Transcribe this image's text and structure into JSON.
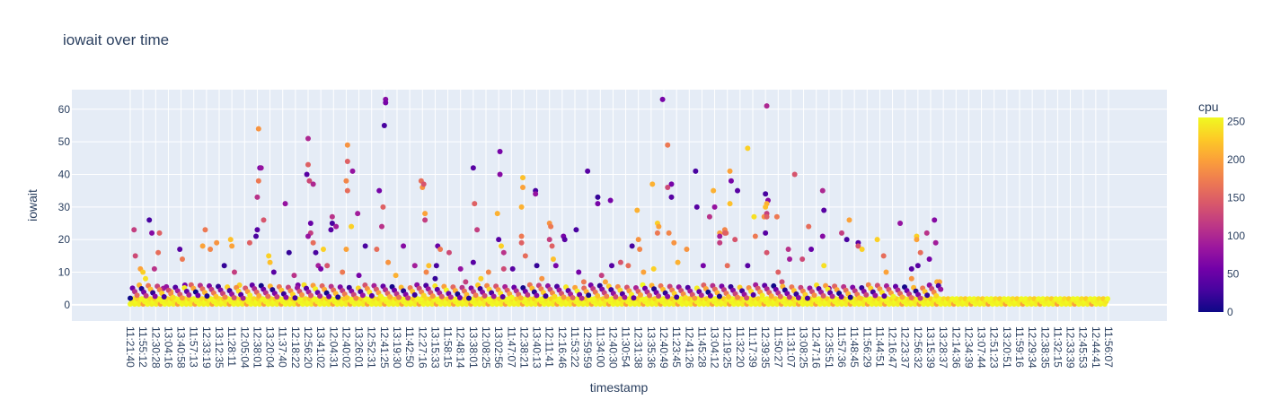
{
  "chart_data": {
    "type": "scatter",
    "title": "iowait over time",
    "xlabel": "timestamp",
    "ylabel": "iowait",
    "ylim": [
      -5,
      66
    ],
    "y_ticks": [
      0,
      10,
      20,
      30,
      40,
      50,
      60
    ],
    "x_ticks": [
      "11:21:40",
      "11:55:12",
      "12:30:28",
      "13:04:16",
      "13:40:58",
      "11:57:13",
      "12:33:19",
      "13:12:35",
      "11:28:11",
      "12:05:04",
      "12:38:01",
      "13:20:04",
      "11:37:40",
      "12:18:22",
      "12:56:20",
      "13:41:02",
      "12:04:31",
      "12:40:02",
      "13:26:01",
      "12:52:31",
      "12:41:25",
      "13:19:30",
      "11:42:50",
      "12:27:16",
      "13:15:33",
      "11:58:15",
      "12:48:14",
      "13:38:01",
      "12:08:25",
      "13:02:56",
      "11:47:07",
      "12:38:21",
      "13:40:13",
      "12:11:41",
      "12:16:46",
      "11:53:22",
      "12:59:59",
      "11:34:00",
      "12:40:30",
      "11:30:54",
      "12:31:38",
      "13:35:36",
      "12:40:49",
      "11:23:45",
      "12:41:26",
      "11:45:28",
      "13:04:12",
      "12:19:25",
      "11:32:20",
      "11:17:39",
      "12:39:35",
      "11:50:27",
      "11:31:07",
      "13:08:25",
      "12:47:16",
      "12:35:51",
      "11:57:36",
      "11:48:45",
      "11:56:29",
      "11:44:51",
      "12:16:47",
      "12:23:37",
      "12:56:32",
      "13:15:39",
      "13:28:37",
      "12:14:36",
      "12:34:39",
      "13:07:44",
      "12:51:23",
      "13:20:51",
      "11:59:16",
      "12:29:34",
      "12:38:35",
      "11:32:15",
      "12:33:39",
      "12:45:53",
      "12:44:41",
      "11:56:07"
    ],
    "colorbar": {
      "title": "cpu",
      "ticks": [
        0,
        50,
        100,
        150,
        200,
        250
      ],
      "range": [
        0,
        255
      ]
    },
    "colorscale": [
      "#0d0887",
      "#46039f",
      "#7201a8",
      "#9c179e",
      "#bd3786",
      "#d8576b",
      "#ed7953",
      "#fb9f3a",
      "#fdca26",
      "#f0f921"
    ],
    "grid": true,
    "legend": "right",
    "points": [
      {
        "x": 0.3,
        "y": 23,
        "c": 120
      },
      {
        "x": 0.4,
        "y": 15,
        "c": 130
      },
      {
        "x": 0.8,
        "y": 11,
        "c": 200
      },
      {
        "x": 1.0,
        "y": 10,
        "c": 230
      },
      {
        "x": 1.2,
        "y": 8,
        "c": 240
      },
      {
        "x": 1.5,
        "y": 26,
        "c": 30
      },
      {
        "x": 1.7,
        "y": 22,
        "c": 70
      },
      {
        "x": 1.9,
        "y": 11,
        "c": 110
      },
      {
        "x": 2.2,
        "y": 16,
        "c": 160
      },
      {
        "x": 2.3,
        "y": 22,
        "c": 150
      },
      {
        "x": 2.6,
        "y": 5,
        "c": 90
      },
      {
        "x": 3.2,
        "y": 4,
        "c": 210
      },
      {
        "x": 3.9,
        "y": 17,
        "c": 40
      },
      {
        "x": 4.1,
        "y": 14,
        "c": 170
      },
      {
        "x": 4.3,
        "y": 6,
        "c": 60
      },
      {
        "x": 5.7,
        "y": 18,
        "c": 200
      },
      {
        "x": 5.9,
        "y": 23,
        "c": 170
      },
      {
        "x": 6.3,
        "y": 17,
        "c": 180
      },
      {
        "x": 6.8,
        "y": 19,
        "c": 190
      },
      {
        "x": 7.4,
        "y": 12,
        "c": 20
      },
      {
        "x": 7.9,
        "y": 20,
        "c": 220
      },
      {
        "x": 8.0,
        "y": 18,
        "c": 200
      },
      {
        "x": 8.2,
        "y": 10,
        "c": 120
      },
      {
        "x": 8.6,
        "y": 6,
        "c": 230
      },
      {
        "x": 9.4,
        "y": 19,
        "c": 150
      },
      {
        "x": 10.1,
        "y": 54,
        "c": 190
      },
      {
        "x": 10.2,
        "y": 42,
        "c": 60
      },
      {
        "x": 10.3,
        "y": 42,
        "c": 80
      },
      {
        "x": 10.1,
        "y": 38,
        "c": 170
      },
      {
        "x": 10.0,
        "y": 33,
        "c": 110
      },
      {
        "x": 10.0,
        "y": 23,
        "c": 40
      },
      {
        "x": 9.9,
        "y": 21,
        "c": 30
      },
      {
        "x": 10.5,
        "y": 26,
        "c": 140
      },
      {
        "x": 10.9,
        "y": 15,
        "c": 230
      },
      {
        "x": 11.0,
        "y": 13,
        "c": 220
      },
      {
        "x": 11.3,
        "y": 10,
        "c": 40
      },
      {
        "x": 12.2,
        "y": 31,
        "c": 80
      },
      {
        "x": 12.5,
        "y": 16,
        "c": 20
      },
      {
        "x": 12.9,
        "y": 9,
        "c": 110
      },
      {
        "x": 13.2,
        "y": 6,
        "c": 60
      },
      {
        "x": 14.0,
        "y": 51,
        "c": 100
      },
      {
        "x": 14.0,
        "y": 43,
        "c": 150
      },
      {
        "x": 13.9,
        "y": 40,
        "c": 40
      },
      {
        "x": 14.1,
        "y": 38,
        "c": 130
      },
      {
        "x": 14.4,
        "y": 37,
        "c": 100
      },
      {
        "x": 14.2,
        "y": 25,
        "c": 50
      },
      {
        "x": 14.2,
        "y": 22,
        "c": 120
      },
      {
        "x": 14.0,
        "y": 21,
        "c": 80
      },
      {
        "x": 14.4,
        "y": 19,
        "c": 160
      },
      {
        "x": 14.6,
        "y": 16,
        "c": 30
      },
      {
        "x": 14.8,
        "y": 12,
        "c": 90
      },
      {
        "x": 15.0,
        "y": 11,
        "c": 60
      },
      {
        "x": 15.2,
        "y": 17,
        "c": 230
      },
      {
        "x": 15.9,
        "y": 27,
        "c": 110
      },
      {
        "x": 15.9,
        "y": 25,
        "c": 30
      },
      {
        "x": 15.8,
        "y": 23,
        "c": 40
      },
      {
        "x": 16.2,
        "y": 24,
        "c": 90
      },
      {
        "x": 15.5,
        "y": 12,
        "c": 140
      },
      {
        "x": 16.7,
        "y": 10,
        "c": 170
      },
      {
        "x": 17.1,
        "y": 49,
        "c": 190
      },
      {
        "x": 17.1,
        "y": 44,
        "c": 150
      },
      {
        "x": 17.0,
        "y": 38,
        "c": 180
      },
      {
        "x": 17.1,
        "y": 35,
        "c": 160
      },
      {
        "x": 17.0,
        "y": 17,
        "c": 200
      },
      {
        "x": 17.5,
        "y": 41,
        "c": 80
      },
      {
        "x": 17.4,
        "y": 24,
        "c": 230
      },
      {
        "x": 17.9,
        "y": 28,
        "c": 90
      },
      {
        "x": 18.0,
        "y": 9,
        "c": 60
      },
      {
        "x": 18.5,
        "y": 18,
        "c": 30
      },
      {
        "x": 19.4,
        "y": 17,
        "c": 160
      },
      {
        "x": 19.6,
        "y": 35,
        "c": 60
      },
      {
        "x": 19.9,
        "y": 30,
        "c": 150
      },
      {
        "x": 20.1,
        "y": 63,
        "c": 70
      },
      {
        "x": 20.1,
        "y": 62,
        "c": 60
      },
      {
        "x": 20.0,
        "y": 55,
        "c": 30
      },
      {
        "x": 19.8,
        "y": 24,
        "c": 110
      },
      {
        "x": 20.3,
        "y": 13,
        "c": 190
      },
      {
        "x": 20.9,
        "y": 9,
        "c": 210
      },
      {
        "x": 21.5,
        "y": 18,
        "c": 70
      },
      {
        "x": 22.4,
        "y": 12,
        "c": 90
      },
      {
        "x": 22.9,
        "y": 38,
        "c": 160
      },
      {
        "x": 23.0,
        "y": 36,
        "c": 190
      },
      {
        "x": 23.1,
        "y": 37,
        "c": 140
      },
      {
        "x": 23.2,
        "y": 28,
        "c": 200
      },
      {
        "x": 23.2,
        "y": 26,
        "c": 120
      },
      {
        "x": 23.5,
        "y": 12,
        "c": 220
      },
      {
        "x": 23.3,
        "y": 10,
        "c": 180
      },
      {
        "x": 24.2,
        "y": 18,
        "c": 50
      },
      {
        "x": 24.4,
        "y": 17,
        "c": 170
      },
      {
        "x": 24.1,
        "y": 12,
        "c": 30
      },
      {
        "x": 24.0,
        "y": 8,
        "c": 20
      },
      {
        "x": 25.1,
        "y": 16,
        "c": 130
      },
      {
        "x": 26.0,
        "y": 11,
        "c": 80
      },
      {
        "x": 26.4,
        "y": 7,
        "c": 120
      },
      {
        "x": 27.0,
        "y": 42,
        "c": 40
      },
      {
        "x": 27.1,
        "y": 31,
        "c": 150
      },
      {
        "x": 27.3,
        "y": 23,
        "c": 120
      },
      {
        "x": 27.0,
        "y": 13,
        "c": 40
      },
      {
        "x": 27.6,
        "y": 8,
        "c": 230
      },
      {
        "x": 28.2,
        "y": 10,
        "c": 180
      },
      {
        "x": 28.9,
        "y": 28,
        "c": 210
      },
      {
        "x": 29.0,
        "y": 20,
        "c": 40
      },
      {
        "x": 29.1,
        "y": 47,
        "c": 60
      },
      {
        "x": 29.1,
        "y": 40,
        "c": 70
      },
      {
        "x": 29.2,
        "y": 18,
        "c": 230
      },
      {
        "x": 29.4,
        "y": 16,
        "c": 110
      },
      {
        "x": 29.4,
        "y": 11,
        "c": 130
      },
      {
        "x": 30.1,
        "y": 11,
        "c": 40
      },
      {
        "x": 30.9,
        "y": 39,
        "c": 220
      },
      {
        "x": 30.9,
        "y": 36,
        "c": 200
      },
      {
        "x": 30.8,
        "y": 30,
        "c": 210
      },
      {
        "x": 30.8,
        "y": 21,
        "c": 170
      },
      {
        "x": 30.8,
        "y": 19,
        "c": 150
      },
      {
        "x": 31.1,
        "y": 15,
        "c": 160
      },
      {
        "x": 31.9,
        "y": 35,
        "c": 30
      },
      {
        "x": 31.9,
        "y": 34,
        "c": 80
      },
      {
        "x": 32.0,
        "y": 12,
        "c": 20
      },
      {
        "x": 32.4,
        "y": 8,
        "c": 190
      },
      {
        "x": 33.0,
        "y": 25,
        "c": 190
      },
      {
        "x": 33.1,
        "y": 24,
        "c": 170
      },
      {
        "x": 33.0,
        "y": 20,
        "c": 120
      },
      {
        "x": 33.2,
        "y": 18,
        "c": 150
      },
      {
        "x": 33.3,
        "y": 14,
        "c": 220
      },
      {
        "x": 33.5,
        "y": 12,
        "c": 60
      },
      {
        "x": 34.1,
        "y": 21,
        "c": 60
      },
      {
        "x": 34.2,
        "y": 20,
        "c": 40
      },
      {
        "x": 35.1,
        "y": 23,
        "c": 30
      },
      {
        "x": 35.3,
        "y": 10,
        "c": 60
      },
      {
        "x": 35.7,
        "y": 7,
        "c": 170
      },
      {
        "x": 36.0,
        "y": 41,
        "c": 40
      },
      {
        "x": 36.8,
        "y": 33,
        "c": 20
      },
      {
        "x": 36.8,
        "y": 31,
        "c": 60
      },
      {
        "x": 37.1,
        "y": 9,
        "c": 120
      },
      {
        "x": 37.4,
        "y": 7,
        "c": 200
      },
      {
        "x": 37.8,
        "y": 32,
        "c": 60
      },
      {
        "x": 37.9,
        "y": 12,
        "c": 40
      },
      {
        "x": 38.6,
        "y": 13,
        "c": 140
      },
      {
        "x": 39.2,
        "y": 12,
        "c": 160
      },
      {
        "x": 39.5,
        "y": 18,
        "c": 30
      },
      {
        "x": 39.9,
        "y": 29,
        "c": 210
      },
      {
        "x": 40.0,
        "y": 20,
        "c": 190
      },
      {
        "x": 40.1,
        "y": 17,
        "c": 180
      },
      {
        "x": 40.4,
        "y": 10,
        "c": 200
      },
      {
        "x": 41.1,
        "y": 37,
        "c": 210
      },
      {
        "x": 41.5,
        "y": 25,
        "c": 230
      },
      {
        "x": 41.6,
        "y": 24,
        "c": 200
      },
      {
        "x": 41.5,
        "y": 22,
        "c": 170
      },
      {
        "x": 41.2,
        "y": 11,
        "c": 230
      },
      {
        "x": 41.9,
        "y": 63,
        "c": 60
      },
      {
        "x": 42.3,
        "y": 49,
        "c": 170
      },
      {
        "x": 42.6,
        "y": 37,
        "c": 60
      },
      {
        "x": 42.3,
        "y": 36,
        "c": 130
      },
      {
        "x": 42.6,
        "y": 33,
        "c": 40
      },
      {
        "x": 42.4,
        "y": 22,
        "c": 180
      },
      {
        "x": 42.8,
        "y": 19,
        "c": 190
      },
      {
        "x": 43.1,
        "y": 13,
        "c": 210
      },
      {
        "x": 43.8,
        "y": 17,
        "c": 190
      },
      {
        "x": 44.5,
        "y": 41,
        "c": 30
      },
      {
        "x": 44.6,
        "y": 30,
        "c": 40
      },
      {
        "x": 45.1,
        "y": 12,
        "c": 60
      },
      {
        "x": 45.6,
        "y": 27,
        "c": 110
      },
      {
        "x": 45.9,
        "y": 35,
        "c": 210
      },
      {
        "x": 46.0,
        "y": 30,
        "c": 80
      },
      {
        "x": 46.4,
        "y": 22,
        "c": 200
      },
      {
        "x": 46.4,
        "y": 21,
        "c": 90
      },
      {
        "x": 46.4,
        "y": 19,
        "c": 120
      },
      {
        "x": 46.8,
        "y": 23,
        "c": 180
      },
      {
        "x": 46.9,
        "y": 22,
        "c": 160
      },
      {
        "x": 46.8,
        "y": 22,
        "c": 150
      },
      {
        "x": 47.0,
        "y": 12,
        "c": 160
      },
      {
        "x": 47.2,
        "y": 41,
        "c": 200
      },
      {
        "x": 47.3,
        "y": 38,
        "c": 60
      },
      {
        "x": 47.2,
        "y": 31,
        "c": 220
      },
      {
        "x": 47.6,
        "y": 20,
        "c": 140
      },
      {
        "x": 47.8,
        "y": 35,
        "c": 40
      },
      {
        "x": 48.6,
        "y": 48,
        "c": 230
      },
      {
        "x": 48.6,
        "y": 12,
        "c": 40
      },
      {
        "x": 49.1,
        "y": 27,
        "c": 240
      },
      {
        "x": 49.2,
        "y": 21,
        "c": 170
      },
      {
        "x": 49.9,
        "y": 27,
        "c": 190
      },
      {
        "x": 50.1,
        "y": 61,
        "c": 100
      },
      {
        "x": 50.0,
        "y": 34,
        "c": 30
      },
      {
        "x": 50.2,
        "y": 32,
        "c": 70
      },
      {
        "x": 50.1,
        "y": 31,
        "c": 210
      },
      {
        "x": 50.0,
        "y": 30,
        "c": 220
      },
      {
        "x": 50.1,
        "y": 28,
        "c": 120
      },
      {
        "x": 50.1,
        "y": 27,
        "c": 150
      },
      {
        "x": 50.0,
        "y": 22,
        "c": 40
      },
      {
        "x": 50.1,
        "y": 16,
        "c": 140
      },
      {
        "x": 50.9,
        "y": 27,
        "c": 170
      },
      {
        "x": 51.0,
        "y": 10,
        "c": 150
      },
      {
        "x": 51.3,
        "y": 7,
        "c": 130
      },
      {
        "x": 51.8,
        "y": 17,
        "c": 110
      },
      {
        "x": 51.9,
        "y": 14,
        "c": 90
      },
      {
        "x": 52.3,
        "y": 40,
        "c": 140
      },
      {
        "x": 52.9,
        "y": 14,
        "c": 130
      },
      {
        "x": 53.4,
        "y": 24,
        "c": 160
      },
      {
        "x": 53.6,
        "y": 17,
        "c": 50
      },
      {
        "x": 54.5,
        "y": 35,
        "c": 100
      },
      {
        "x": 54.6,
        "y": 29,
        "c": 40
      },
      {
        "x": 54.5,
        "y": 21,
        "c": 70
      },
      {
        "x": 54.6,
        "y": 12,
        "c": 240
      },
      {
        "x": 55.0,
        "y": 5,
        "c": 70
      },
      {
        "x": 56.0,
        "y": 22,
        "c": 120
      },
      {
        "x": 56.4,
        "y": 20,
        "c": 30
      },
      {
        "x": 56.6,
        "y": 26,
        "c": 200
      },
      {
        "x": 57.3,
        "y": 19,
        "c": 40
      },
      {
        "x": 57.3,
        "y": 18,
        "c": 140
      },
      {
        "x": 57.6,
        "y": 17,
        "c": 230
      },
      {
        "x": 58.8,
        "y": 20,
        "c": 230
      },
      {
        "x": 59.3,
        "y": 15,
        "c": 160
      },
      {
        "x": 59.5,
        "y": 10,
        "c": 200
      },
      {
        "x": 60.6,
        "y": 25,
        "c": 80
      },
      {
        "x": 61.5,
        "y": 11,
        "c": 40
      },
      {
        "x": 61.5,
        "y": 8,
        "c": 190
      },
      {
        "x": 61.9,
        "y": 21,
        "c": 230
      },
      {
        "x": 61.9,
        "y": 20,
        "c": 200
      },
      {
        "x": 62.2,
        "y": 16,
        "c": 160
      },
      {
        "x": 62.0,
        "y": 12,
        "c": 40
      },
      {
        "x": 62.7,
        "y": 22,
        "c": 110
      },
      {
        "x": 62.9,
        "y": 14,
        "c": 60
      },
      {
        "x": 63.3,
        "y": 26,
        "c": 70
      },
      {
        "x": 63.4,
        "y": 19,
        "c": 90
      },
      {
        "x": 63.5,
        "y": 7,
        "c": 210
      },
      {
        "x": 63.7,
        "y": 7,
        "c": 200
      }
    ]
  }
}
